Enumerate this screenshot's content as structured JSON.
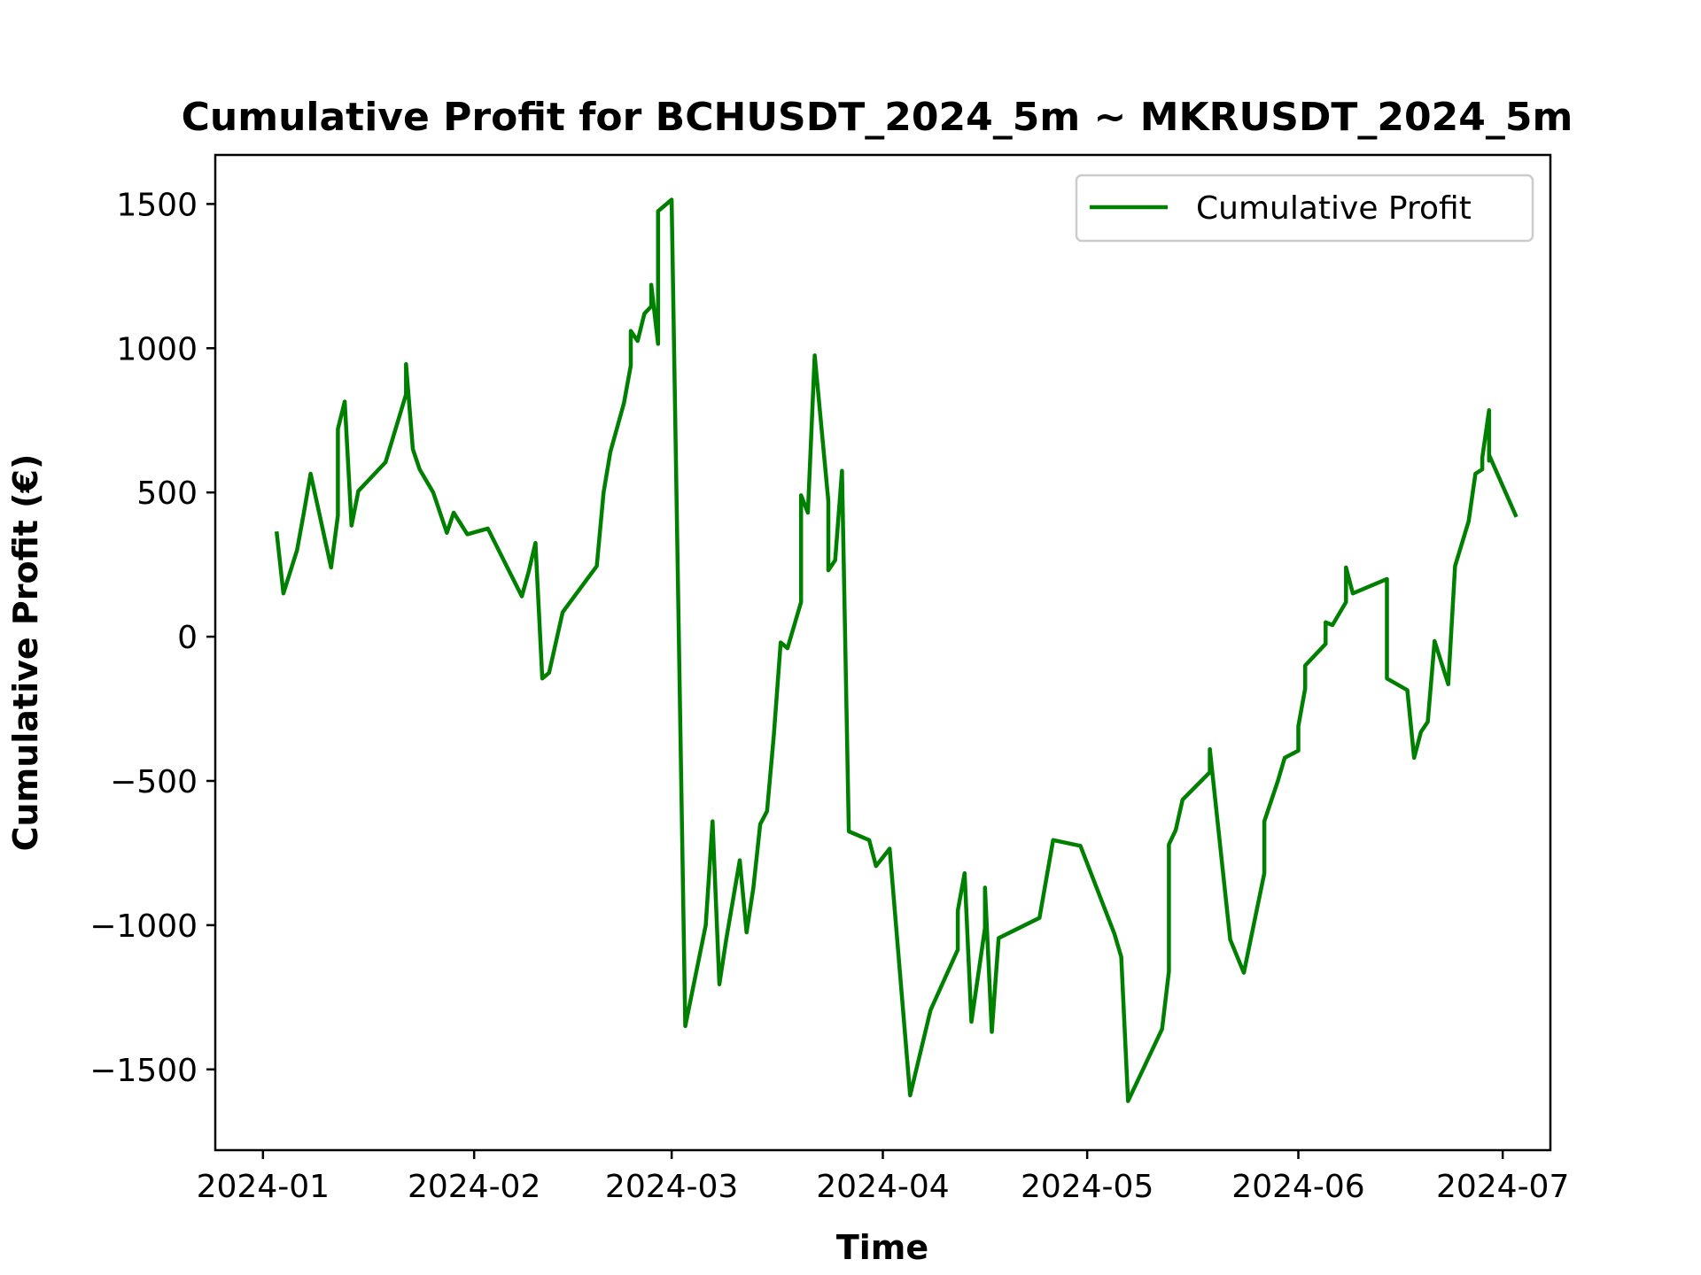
{
  "chart_data": {
    "type": "line",
    "title": "Cumulative Profit for BCHUSDT_2024_5m ~ MKRUSDT_2024_5m",
    "xlabel": "Time",
    "ylabel": "Cumulative Profit (€)",
    "xlim": [
      "2023-12-25",
      "2024-07-08"
    ],
    "ylim": [
      -1780,
      1670
    ],
    "x_ticks": [
      "2024-01-01",
      "2024-02-01",
      "2024-03-01",
      "2024-04-01",
      "2024-05-01",
      "2024-06-01",
      "2024-07-01"
    ],
    "x_tick_labels": [
      "2024-01",
      "2024-02",
      "2024-03",
      "2024-04",
      "2024-05",
      "2024-06",
      "2024-07"
    ],
    "y_ticks": [
      -1500,
      -1000,
      -500,
      0,
      500,
      1000,
      1500
    ],
    "y_tick_labels": [
      "−1500",
      "−1000",
      "−500",
      "0",
      "500",
      "1000",
      "1500"
    ],
    "grid": false,
    "legend": "top-right",
    "series": [
      {
        "name": "Cumulative Profit",
        "color": "#008000",
        "points": [
          [
            "2024-01-03",
            365
          ],
          [
            "2024-01-04",
            150
          ],
          [
            "2024-01-06",
            300
          ],
          [
            "2024-01-07",
            430
          ],
          [
            "2024-01-08",
            565
          ],
          [
            "2024-01-11",
            240
          ],
          [
            "2024-01-12",
            420
          ],
          [
            "2024-01-12",
            720
          ],
          [
            "2024-01-13",
            815
          ],
          [
            "2024-01-14",
            385
          ],
          [
            "2024-01-15",
            505
          ],
          [
            "2024-01-19",
            605
          ],
          [
            "2024-01-22",
            840
          ],
          [
            "2024-01-22",
            945
          ],
          [
            "2024-01-23",
            650
          ],
          [
            "2024-01-24",
            580
          ],
          [
            "2024-01-26",
            500
          ],
          [
            "2024-01-28",
            360
          ],
          [
            "2024-01-29",
            430
          ],
          [
            "2024-01-31",
            355
          ],
          [
            "2024-02-03",
            375
          ],
          [
            "2024-02-08",
            140
          ],
          [
            "2024-02-09",
            225
          ],
          [
            "2024-02-10",
            325
          ],
          [
            "2024-02-11",
            -145
          ],
          [
            "2024-02-12",
            -125
          ],
          [
            "2024-02-14",
            85
          ],
          [
            "2024-02-19",
            245
          ],
          [
            "2024-02-20",
            500
          ],
          [
            "2024-02-21",
            640
          ],
          [
            "2024-02-23",
            810
          ],
          [
            "2024-02-24",
            940
          ],
          [
            "2024-02-24",
            1060
          ],
          [
            "2024-02-25",
            1025
          ],
          [
            "2024-02-26",
            1120
          ],
          [
            "2024-02-27",
            1145
          ],
          [
            "2024-02-27",
            1220
          ],
          [
            "2024-02-28",
            1015
          ],
          [
            "2024-02-28",
            1475
          ],
          [
            "2024-03-01",
            1515
          ],
          [
            "2024-03-03",
            -1350
          ],
          [
            "2024-03-06",
            -1000
          ],
          [
            "2024-03-07",
            -640
          ],
          [
            "2024-03-08",
            -1205
          ],
          [
            "2024-03-09",
            -1050
          ],
          [
            "2024-03-11",
            -775
          ],
          [
            "2024-03-12",
            -1025
          ],
          [
            "2024-03-13",
            -870
          ],
          [
            "2024-03-14",
            -650
          ],
          [
            "2024-03-15",
            -605
          ],
          [
            "2024-03-16",
            -340
          ],
          [
            "2024-03-17",
            -20
          ],
          [
            "2024-03-18",
            -40
          ],
          [
            "2024-03-20",
            120
          ],
          [
            "2024-03-20",
            490
          ],
          [
            "2024-03-21",
            430
          ],
          [
            "2024-03-22",
            975
          ],
          [
            "2024-03-24",
            470
          ],
          [
            "2024-03-24",
            230
          ],
          [
            "2024-03-25",
            265
          ],
          [
            "2024-03-26",
            575
          ],
          [
            "2024-03-27",
            -675
          ],
          [
            "2024-03-30",
            -705
          ],
          [
            "2024-03-31",
            -795
          ],
          [
            "2024-04-02",
            -735
          ],
          [
            "2024-04-05",
            -1590
          ],
          [
            "2024-04-08",
            -1295
          ],
          [
            "2024-04-12",
            -1085
          ],
          [
            "2024-04-12",
            -950
          ],
          [
            "2024-04-13",
            -820
          ],
          [
            "2024-04-14",
            -1335
          ],
          [
            "2024-04-16",
            -1010
          ],
          [
            "2024-04-16",
            -870
          ],
          [
            "2024-04-17",
            -1370
          ],
          [
            "2024-04-18",
            -1045
          ],
          [
            "2024-04-24",
            -975
          ],
          [
            "2024-04-26",
            -705
          ],
          [
            "2024-04-30",
            -725
          ],
          [
            "2024-05-05",
            -1030
          ],
          [
            "2024-05-06",
            -1110
          ],
          [
            "2024-05-07",
            -1610
          ],
          [
            "2024-05-12",
            -1360
          ],
          [
            "2024-05-13",
            -1160
          ],
          [
            "2024-05-13",
            -720
          ],
          [
            "2024-05-14",
            -670
          ],
          [
            "2024-05-15",
            -565
          ],
          [
            "2024-05-19",
            -470
          ],
          [
            "2024-05-19",
            -390
          ],
          [
            "2024-05-22",
            -1050
          ],
          [
            "2024-05-24",
            -1165
          ],
          [
            "2024-05-27",
            -820
          ],
          [
            "2024-05-27",
            -640
          ],
          [
            "2024-05-29",
            -500
          ],
          [
            "2024-05-30",
            -420
          ],
          [
            "2024-06-01",
            -395
          ],
          [
            "2024-06-01",
            -310
          ],
          [
            "2024-06-02",
            -180
          ],
          [
            "2024-06-02",
            -100
          ],
          [
            "2024-06-05",
            -25
          ],
          [
            "2024-06-05",
            50
          ],
          [
            "2024-06-06",
            40
          ],
          [
            "2024-06-08",
            120
          ],
          [
            "2024-06-08",
            240
          ],
          [
            "2024-06-09",
            150
          ],
          [
            "2024-06-14",
            200
          ],
          [
            "2024-06-14",
            -145
          ],
          [
            "2024-06-17",
            -185
          ],
          [
            "2024-06-18",
            -420
          ],
          [
            "2024-06-19",
            -330
          ],
          [
            "2024-06-20",
            -295
          ],
          [
            "2024-06-21",
            -15
          ],
          [
            "2024-06-23",
            -165
          ],
          [
            "2024-06-24",
            245
          ],
          [
            "2024-06-26",
            400
          ],
          [
            "2024-06-27",
            565
          ],
          [
            "2024-06-28",
            580
          ],
          [
            "2024-06-28",
            620
          ],
          [
            "2024-06-29",
            785
          ],
          [
            "2024-06-29",
            610
          ],
          [
            "2024-06-29",
            630
          ],
          [
            "2024-07-03",
            415
          ]
        ]
      }
    ]
  }
}
